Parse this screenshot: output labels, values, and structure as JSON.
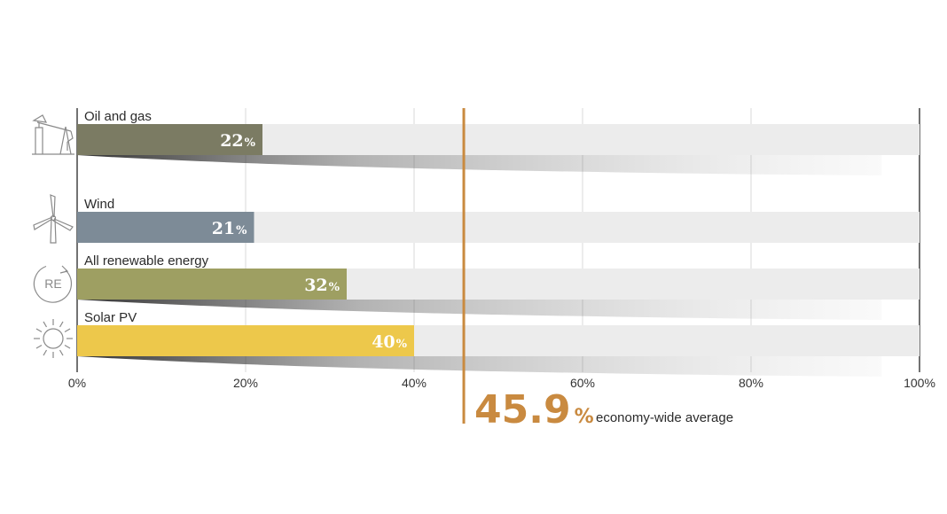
{
  "chart_data": {
    "type": "bar",
    "orientation": "horizontal",
    "categories": [
      "Oil and gas",
      "Wind",
      "All renewable energy",
      "Solar PV"
    ],
    "values": [
      22,
      21,
      32,
      40
    ],
    "value_labels": [
      "22",
      "21",
      "32",
      "40"
    ],
    "value_suffix": "%",
    "colors": [
      "#7b7b63",
      "#7d8b97",
      "#9e9f62",
      "#edc84b"
    ],
    "track_color": "#ececec",
    "icons": [
      "oil-pump-icon",
      "wind-turbine-icon",
      "renewable-energy-icon",
      "sun-icon"
    ],
    "xlim": [
      0,
      100
    ],
    "xticks": [
      0,
      20,
      40,
      60,
      80,
      100
    ],
    "xtick_labels": [
      "0%",
      "20%",
      "40%",
      "60%",
      "80%",
      "100%"
    ],
    "grid": true,
    "reference_line": {
      "value": 45.9,
      "value_label": "45.9",
      "suffix": "%",
      "label": "economy-wide average",
      "color": "#c98a40"
    }
  }
}
